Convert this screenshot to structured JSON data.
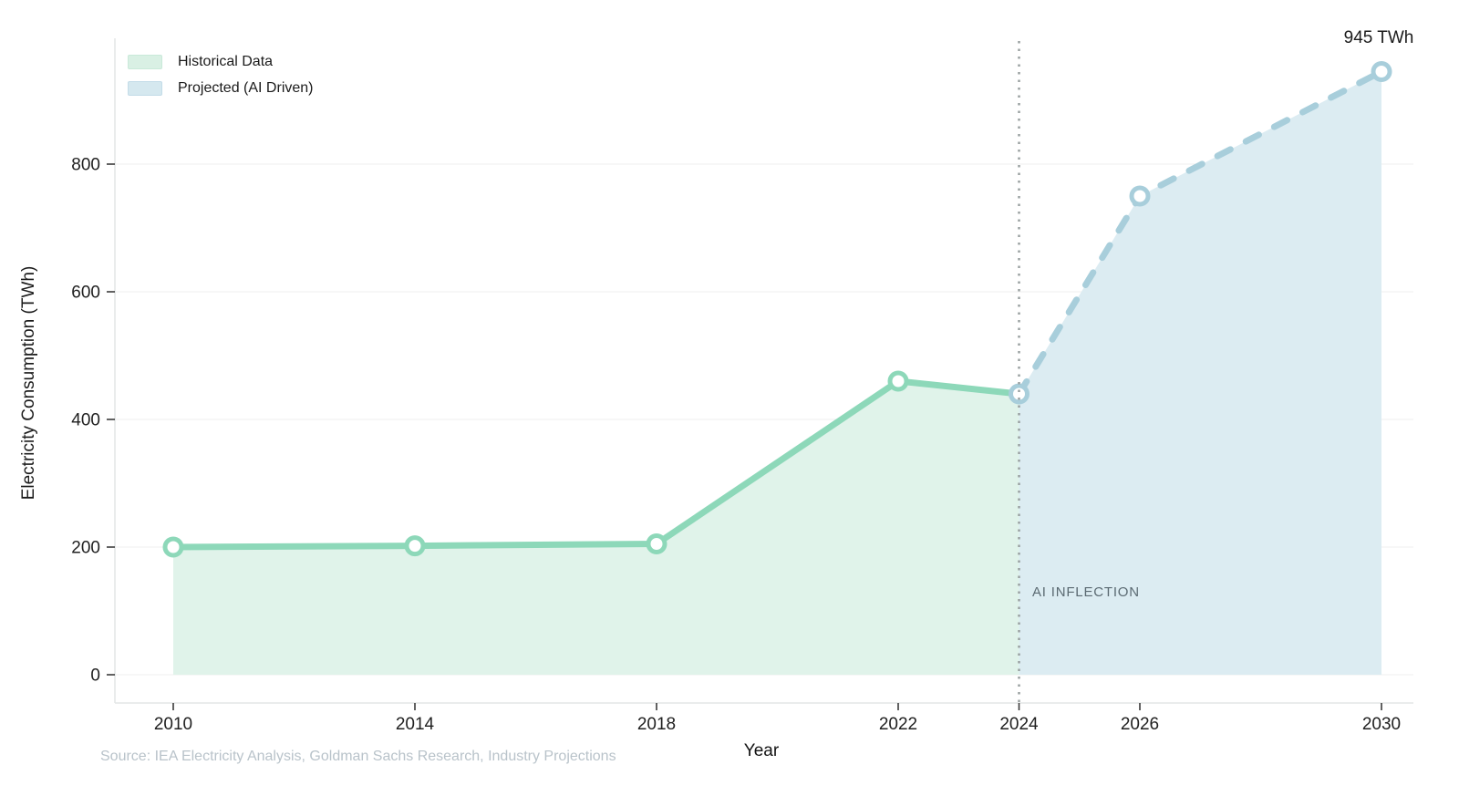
{
  "chart_data": {
    "type": "area",
    "xlabel": "Year",
    "ylabel": "Electricity Consumption (TWh)",
    "x_ticks": [
      2010,
      2014,
      2018,
      2022,
      2024,
      2026,
      2030
    ],
    "y_ticks": [
      0,
      200,
      400,
      600,
      800
    ],
    "xlim": [
      2010,
      2030
    ],
    "ylim": [
      0,
      1000
    ],
    "grid": "horizontal",
    "legend_position": "top-left",
    "series": [
      {
        "name": "Historical Data",
        "x": [
          2010,
          2014,
          2018,
          2022,
          2024
        ],
        "values": [
          200,
          202,
          205,
          460,
          440
        ],
        "style": "solid",
        "marker_years": [
          2010,
          2014,
          2018,
          2022
        ],
        "line_color": "#8dd8b9",
        "fill_color": "#e0f3ea"
      },
      {
        "name": "Projected (AI Driven)",
        "x": [
          2024,
          2026,
          2030
        ],
        "values": [
          440,
          750,
          945
        ],
        "style": "dashed",
        "marker_years": [
          2024,
          2026,
          2030
        ],
        "line_color": "#a8cedb",
        "fill_color": "#dcecf2"
      }
    ],
    "annotations": {
      "peak_label": "945 TWh",
      "inflection_label": "AI INFLECTION",
      "inflection_year": 2024
    },
    "source": "Source: IEA Electricity Analysis, Goldman Sachs Research, Industry Projections"
  },
  "legend": {
    "historical_label": "Historical Data",
    "projected_label": "Projected (AI Driven)"
  },
  "colors": {
    "historical_line": "#8dd8b9",
    "historical_fill": "#e0f3ea",
    "projected_line": "#a8cedb",
    "projected_fill": "#dcecf2",
    "grid_line": "#efefef",
    "axis_line": "#e3e6e6",
    "tick_mark": "#3a3a3a",
    "tick_label": "#212121",
    "inflection_line": "#9aa1a1",
    "inflection_text": "#5b6a72",
    "source_text": "#b9c3ca",
    "marker_fill": "#ffffff"
  }
}
